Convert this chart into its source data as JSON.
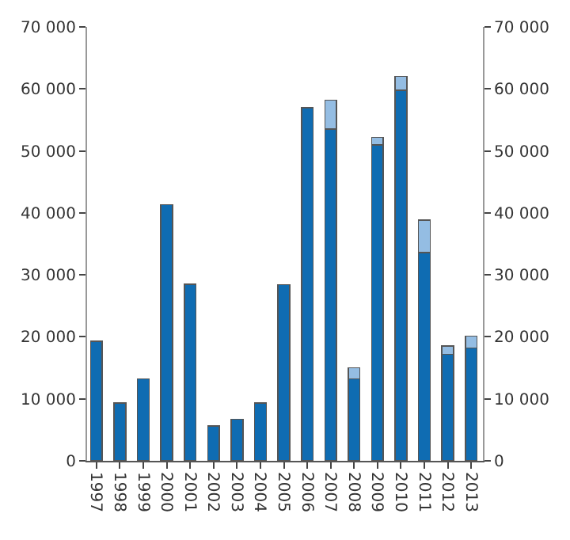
{
  "chart_data": {
    "type": "bar",
    "stacked": true,
    "categories": [
      "1997",
      "1998",
      "1999",
      "2000",
      "2001",
      "2002",
      "2003",
      "2004",
      "2005",
      "2006",
      "2007",
      "2008",
      "2009",
      "2010",
      "2011",
      "2012",
      "2013"
    ],
    "series": [
      {
        "color": "#0f6cb2",
        "values": [
          19300,
          9300,
          13200,
          41300,
          28500,
          5600,
          6700,
          9300,
          28400,
          57000,
          53500,
          13200,
          51000,
          59800,
          33600,
          17200,
          18200
        ]
      },
      {
        "color": "#94bde3",
        "values": [
          null,
          null,
          null,
          null,
          null,
          null,
          null,
          null,
          null,
          null,
          4700,
          1800,
          1200,
          2200,
          5200,
          1300,
          1900
        ]
      }
    ],
    "ylim": [
      0,
      70000
    ],
    "yticks": [
      0,
      {
        "value": 10000,
        "label": "10 000"
      },
      {
        "value": 20000,
        "label": "20 000"
      },
      {
        "value": 30000,
        "label": "30 000"
      },
      {
        "value": 40000,
        "label": "40 000"
      },
      {
        "value": 50000,
        "label": "50 000"
      },
      {
        "value": 60000,
        "label": "60 000"
      },
      {
        "value": 70000,
        "label": "70 000"
      }
    ],
    "y2lim": [
      0,
      70000
    ],
    "y2ticks": [
      0,
      {
        "value": 10000,
        "label": "10 000"
      },
      {
        "value": 20000,
        "label": "20 000"
      },
      {
        "value": 30000,
        "label": "30 000"
      },
      {
        "value": 40000,
        "label": "40 000"
      },
      {
        "value": 50000,
        "label": "50 000"
      },
      {
        "value": 60000,
        "label": "60 000"
      },
      {
        "value": 70000,
        "label": "70 000"
      }
    ]
  }
}
